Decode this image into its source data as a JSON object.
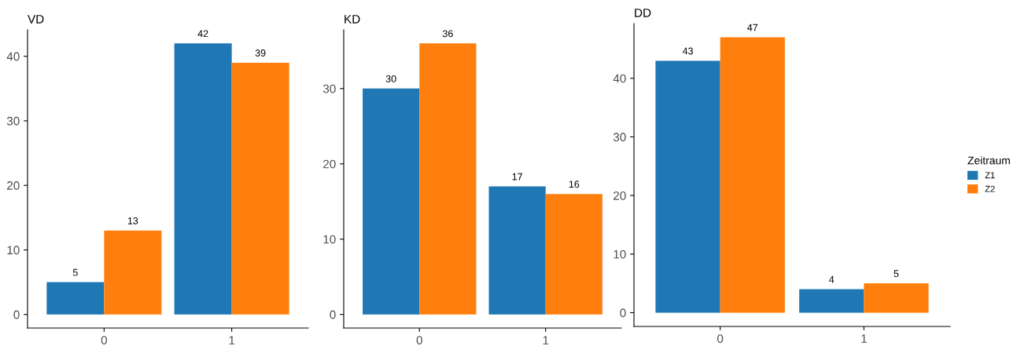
{
  "chart_data": [
    {
      "type": "bar",
      "title": "VD",
      "categories": [
        "0",
        "1"
      ],
      "ylim": [
        -2.1,
        44.1
      ],
      "yticks": [
        0,
        10,
        20,
        30,
        40
      ],
      "grid": false,
      "data_labels": true,
      "legend": "right",
      "legend_title": "Zeitraum",
      "series": [
        {
          "name": "Z1",
          "color": "#1f77b4",
          "values": [
            5,
            42
          ]
        },
        {
          "name": "Z2",
          "color": "#ff7f0e",
          "values": [
            13,
            39
          ]
        }
      ]
    },
    {
      "type": "bar",
      "title": "KD",
      "categories": [
        "0",
        "1"
      ],
      "ylim": [
        -1.8,
        37.8
      ],
      "yticks": [
        0,
        10,
        20,
        30
      ],
      "grid": false,
      "data_labels": true,
      "series": [
        {
          "name": "Z1",
          "color": "#1f77b4",
          "values": [
            30,
            17
          ]
        },
        {
          "name": "Z2",
          "color": "#ff7f0e",
          "values": [
            36,
            16
          ]
        }
      ]
    },
    {
      "type": "bar",
      "title": "DD",
      "categories": [
        "0",
        "1"
      ],
      "ylim": [
        -2.35,
        49.35
      ],
      "yticks": [
        0,
        10,
        20,
        30,
        40
      ],
      "grid": false,
      "data_labels": true,
      "series": [
        {
          "name": "Z1",
          "color": "#1f77b4",
          "values": [
            43,
            4
          ]
        },
        {
          "name": "Z2",
          "color": "#ff7f0e",
          "values": [
            47,
            5
          ]
        }
      ]
    }
  ]
}
